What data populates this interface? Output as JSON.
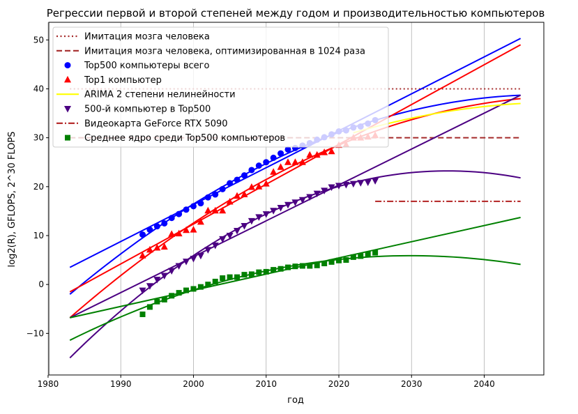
{
  "chart_data": {
    "type": "scatter",
    "title": "Регрессии первой и второй степеней между годом и производительностью компьютеров",
    "xlabel": "год",
    "ylabel": "log2(R), GFLOPS, 2^30 FLOPS",
    "xlim": [
      1980.1,
      2048.2
    ],
    "ylim": [
      -18.5,
      53.6
    ],
    "xticks": [
      1980,
      1990,
      2000,
      2010,
      2020,
      2030,
      2040
    ],
    "yticks": [
      -10,
      0,
      10,
      20,
      30,
      40,
      50
    ],
    "grid": "x",
    "legend_placement": "top-left",
    "years": [
      1993,
      1994,
      1995,
      1996,
      1997,
      1998,
      1999,
      2000,
      2001,
      2002,
      2003,
      2004,
      2005,
      2006,
      2007,
      2008,
      2009,
      2010,
      2011,
      2012,
      2013,
      2014,
      2015,
      2016,
      2017,
      2018,
      2019,
      2020,
      2021,
      2022,
      2023,
      2024,
      2025
    ],
    "reference_lines": [
      {
        "name": "Имитация мозга человека",
        "color": "#a52a2a",
        "style": "dotted",
        "x": [
          1983,
          2045
        ],
        "y": 40
      },
      {
        "name": "Имитация мозга человека, оптимизированная в 1024 раза",
        "color": "#a52a2a",
        "style": "dashed",
        "x": [
          1983,
          2045
        ],
        "y": 30
      },
      {
        "name": "Видеокарта GeForce RTX 5090",
        "color": "#b22222",
        "style": "dashdot",
        "x": [
          2025,
          2045
        ],
        "y": 17
      }
    ],
    "series": [
      {
        "name": "Top500 компьютеры всего",
        "color": "#0000ff",
        "marker": "circle",
        "values": [
          10.2,
          11.2,
          11.9,
          12.5,
          13.6,
          14.4,
          15.3,
          16.0,
          16.6,
          17.8,
          18.4,
          19.5,
          20.7,
          21.4,
          22.3,
          23.4,
          24.3,
          25.0,
          25.9,
          26.8,
          27.6,
          27.9,
          28.4,
          28.9,
          29.6,
          30.1,
          30.7,
          31.3,
          31.5,
          32.1,
          32.3,
          32.9,
          33.6
        ],
        "linear_fit": [
          [
            1983,
            3.5
          ],
          [
            2045,
            50.3
          ]
        ],
        "quadratic_fit": [
          [
            1983,
            -2.0
          ],
          [
            2014,
            27.5
          ],
          [
            2045,
            38.7
          ]
        ]
      },
      {
        "name": "Top1 компьютер",
        "color": "#ff0000",
        "marker": "triangle-up",
        "values": [
          5.9,
          7.1,
          7.5,
          7.7,
          10.3,
          10.4,
          11.1,
          11.2,
          12.8,
          15.1,
          15.1,
          15.1,
          16.9,
          18.1,
          18.4,
          19.9,
          20.0,
          20.6,
          23.0,
          24.0,
          25.0,
          25.0,
          25.0,
          26.5,
          26.5,
          27.0,
          27.2,
          28.5,
          28.6,
          30.0,
          30.0,
          30.2,
          30.5
        ],
        "linear_fit": [
          [
            1983,
            -1.5
          ],
          [
            2045,
            49.0
          ]
        ],
        "quadratic_fit": [
          [
            1983,
            -6.8
          ],
          [
            2014,
            24.5
          ],
          [
            2045,
            38.0
          ]
        ]
      },
      {
        "name": "500-й компьютер в Top500",
        "color": "#4b0082",
        "marker": "triangle-down",
        "values": [
          -1.2,
          -0.3,
          1.0,
          1.8,
          2.8,
          3.8,
          4.7,
          5.3,
          5.9,
          7.1,
          8.0,
          9.3,
          10.0,
          11.0,
          12.0,
          13.0,
          13.8,
          14.4,
          15.1,
          15.7,
          16.3,
          16.8,
          17.3,
          17.9,
          18.6,
          19.2,
          19.9,
          20.2,
          20.4,
          20.6,
          20.8,
          20.9,
          21.2
        ],
        "linear_fit": [
          [
            1983,
            -6.8
          ],
          [
            2045,
            38.7
          ]
        ],
        "quadratic_fit": [
          [
            1983,
            -15.0
          ],
          [
            2014,
            17.0
          ],
          [
            2045,
            21.8
          ]
        ]
      },
      {
        "name": "Среднее ядро среди Top500 компьютеров",
        "color": "#008000",
        "marker": "square",
        "values": [
          -6.1,
          -4.6,
          -3.5,
          -3.1,
          -2.3,
          -1.7,
          -1.2,
          -0.9,
          -0.5,
          0.0,
          0.6,
          1.3,
          1.5,
          1.5,
          2.0,
          2.1,
          2.5,
          2.6,
          3.0,
          3.2,
          3.5,
          3.7,
          3.8,
          3.8,
          3.9,
          4.3,
          4.6,
          4.9,
          5.0,
          5.6,
          5.8,
          6.2,
          6.5
        ],
        "linear_fit": [
          [
            1983,
            -6.8
          ],
          [
            2045,
            13.7
          ]
        ],
        "quadratic_fit": [
          [
            1983,
            -11.4
          ],
          [
            2014,
            3.9
          ],
          [
            2045,
            4.1
          ]
        ]
      }
    ],
    "arima": {
      "name": "ARIMA 2 степени нелинейности",
      "color": "#ffff00",
      "points": [
        [
          2022,
          31.0
        ],
        [
          2030,
          34.0
        ],
        [
          2045,
          37.0
        ]
      ]
    },
    "legend": [
      {
        "label": "Имитация мозга человека",
        "kind": "dotted",
        "color": "#a52a2a"
      },
      {
        "label": "Имитация мозга человека, оптимизированная в 1024 раза",
        "kind": "dashed",
        "color": "#a52a2a"
      },
      {
        "label": "Top500 компьютеры всего",
        "kind": "circle",
        "color": "#0000ff"
      },
      {
        "label": "Top1 компьютер",
        "kind": "triangle-up",
        "color": "#ff0000"
      },
      {
        "label": "ARIMA 2 степени нелинейности",
        "kind": "line",
        "color": "#ffff00"
      },
      {
        "label": "500-й компьютер в Top500",
        "kind": "triangle-down",
        "color": "#4b0082"
      },
      {
        "label": "Видеокарта GeForce RTX 5090",
        "kind": "dashdot",
        "color": "#b22222"
      },
      {
        "label": "Среднее ядро среди Top500 компьютеров",
        "kind": "square",
        "color": "#008000"
      }
    ]
  }
}
